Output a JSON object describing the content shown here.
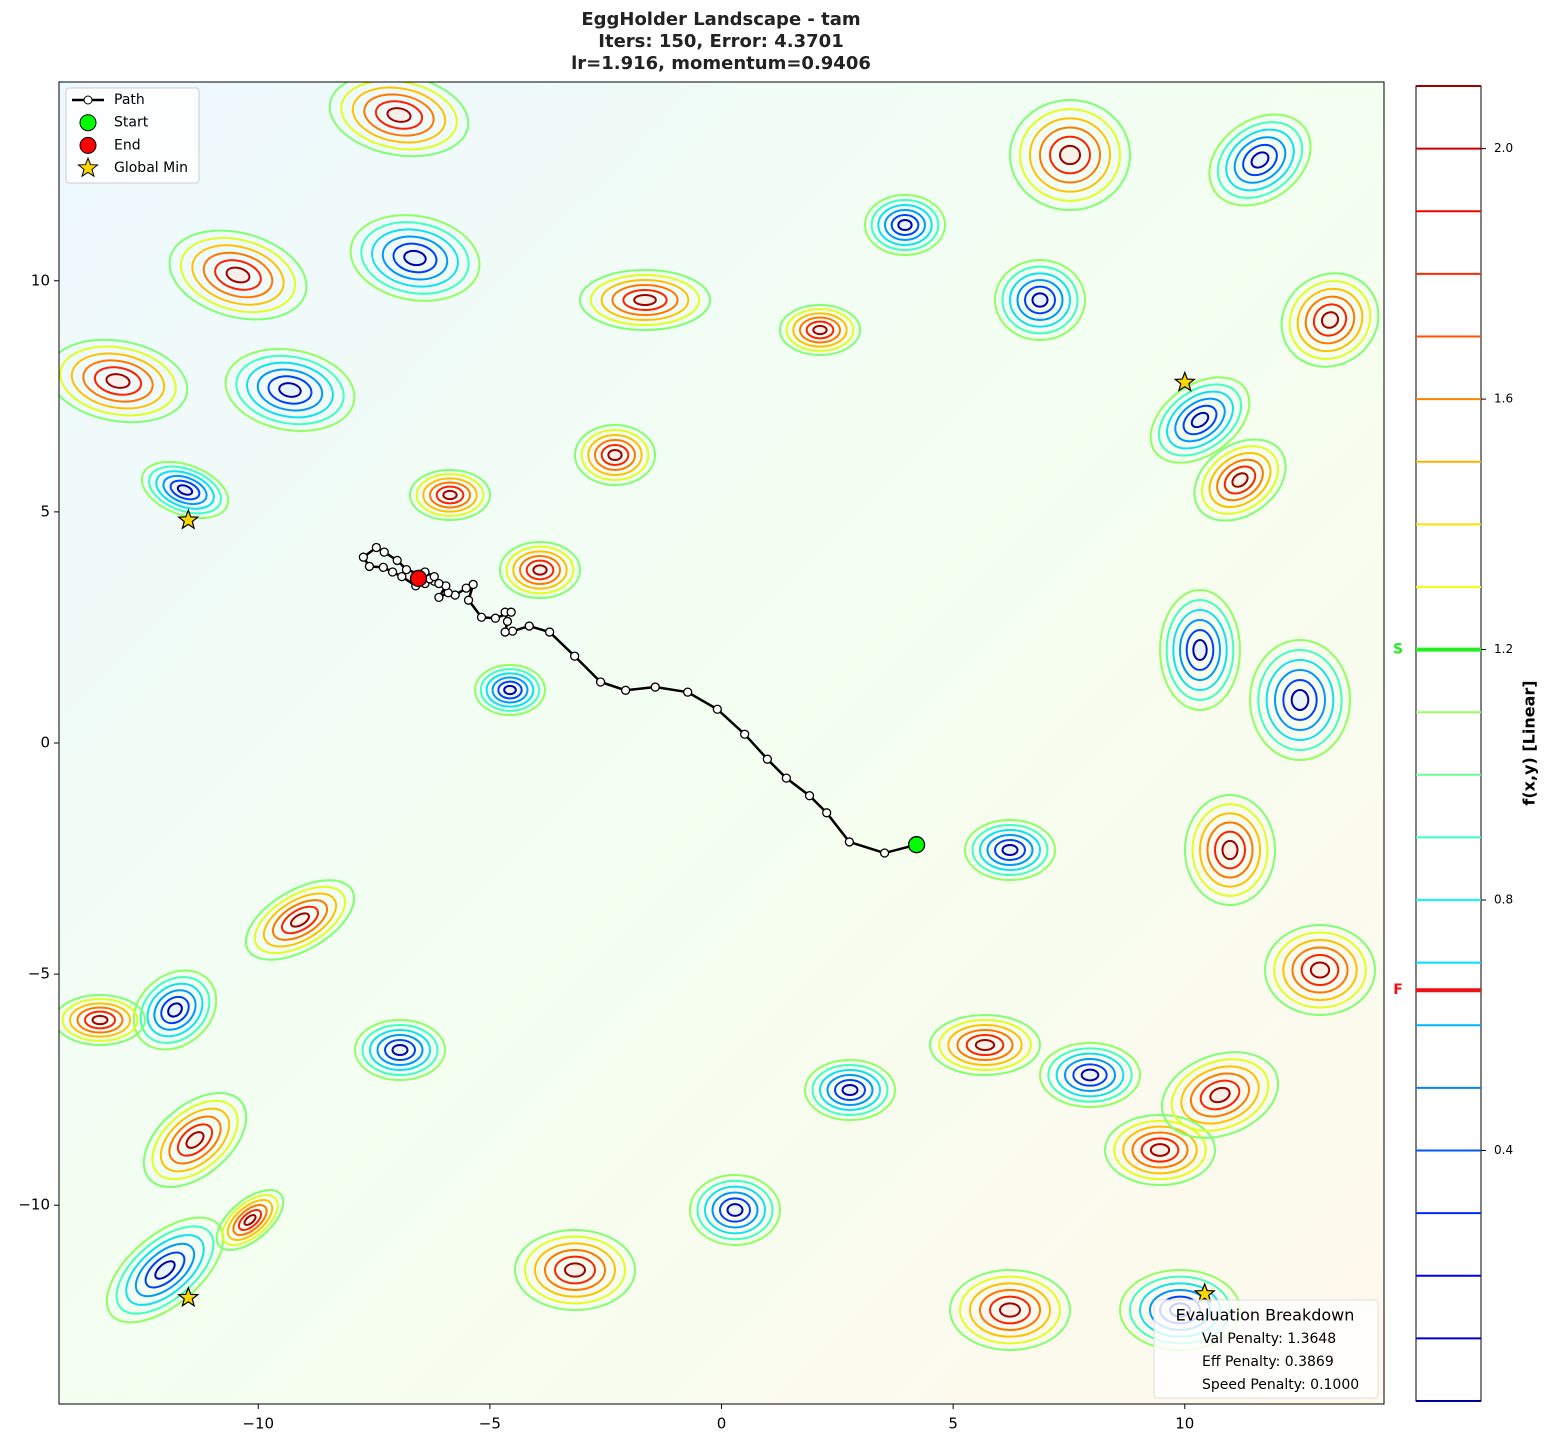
{
  "chart_data": {
    "type": "contour",
    "title": [
      "EggHolder Landscape - tam",
      "Iters: 150, Error: 4.3701",
      "lr=1.916, momentum=0.9406"
    ],
    "xlim": [
      -14.3,
      14.3
    ],
    "ylim": [
      -14.3,
      14.3
    ],
    "xticks": [
      {
        "value": -10,
        "label": "−10"
      },
      {
        "value": -5,
        "label": "−5"
      },
      0,
      5,
      10
    ],
    "yticks": [
      {
        "value": -10,
        "label": "−10"
      },
      {
        "value": -5,
        "label": "−5"
      },
      0,
      5,
      10
    ],
    "legend_loc": "upper left",
    "series": [
      {
        "name": "Path",
        "color": "#000000",
        "x": [
          4.21,
          3.52,
          2.76,
          2.27,
          1.9,
          1.4,
          0.99,
          0.5,
          -0.09,
          -0.73,
          -1.43,
          -2.07,
          -2.61,
          -3.17,
          -3.71,
          -4.15,
          -4.51,
          -4.67,
          -4.62,
          -4.67,
          -4.54,
          -4.88,
          -5.18,
          -5.46,
          -5.36,
          -5.51,
          -5.75,
          -5.9,
          -6.1,
          -5.95,
          -6.2,
          -6.4,
          -6.6,
          -6.9,
          -7.1,
          -7.3,
          -7.6,
          -7.73,
          -7.45,
          -7.28,
          -7.0,
          -6.8,
          -6.5,
          -6.3,
          -6.1,
          -6.2,
          -6.4,
          -6.6,
          -6.54
        ],
        "y": [
          -2.2,
          -2.38,
          -2.14,
          -1.51,
          -1.14,
          -0.76,
          -0.35,
          0.19,
          0.73,
          1.1,
          1.21,
          1.14,
          1.32,
          1.88,
          2.4,
          2.53,
          2.42,
          2.4,
          2.63,
          2.83,
          2.83,
          2.7,
          2.72,
          3.09,
          3.43,
          3.35,
          3.2,
          3.25,
          3.15,
          3.4,
          3.5,
          3.45,
          3.4,
          3.6,
          3.7,
          3.8,
          3.82,
          4.02,
          4.23,
          4.13,
          3.95,
          3.75,
          3.65,
          3.55,
          3.45,
          3.6,
          3.7,
          3.62,
          3.56
        ]
      }
    ],
    "start": {
      "name": "Start",
      "color": "#00ff00",
      "x": 4.21,
      "y": -2.2
    },
    "end": {
      "name": "End",
      "color": "#ff0000",
      "x": -6.54,
      "y": 3.56
    },
    "global_min": {
      "name": "Global Min",
      "color": "#ffd700",
      "x": [
        -11.51,
        10.0,
        -11.51,
        10.43
      ],
      "y": [
        4.82,
        7.8,
        -12.0,
        -11.92
      ]
    },
    "colorbar": {
      "label": "f(x,y) [Linear]",
      "colormap": "jet",
      "lim": [
        0,
        2.1
      ],
      "ticks": [
        0.4,
        0.8,
        1.2,
        1.6,
        {
          "value": 2,
          "label": "2.0"
        }
      ],
      "levels": [
        0,
        0.1,
        0.2,
        0.3,
        0.4,
        0.5,
        0.6,
        0.7,
        0.8,
        0.9,
        1.0,
        1.1,
        1.2,
        1.3,
        1.4,
        1.5,
        1.6,
        1.7,
        1.8,
        1.9,
        2.0,
        2.1
      ],
      "start_marker": {
        "label": "S",
        "value": 1.2,
        "color": "#22ee22"
      },
      "final_marker": {
        "label": "F",
        "value": 0.656,
        "color": "#ee1111"
      }
    },
    "annotation": {
      "title": "Evaluation Breakdown",
      "lines": [
        "Val Penalty: 1.3648",
        "Eff Penalty: 0.3869",
        "Speed Penalty: 0.1000"
      ]
    }
  }
}
